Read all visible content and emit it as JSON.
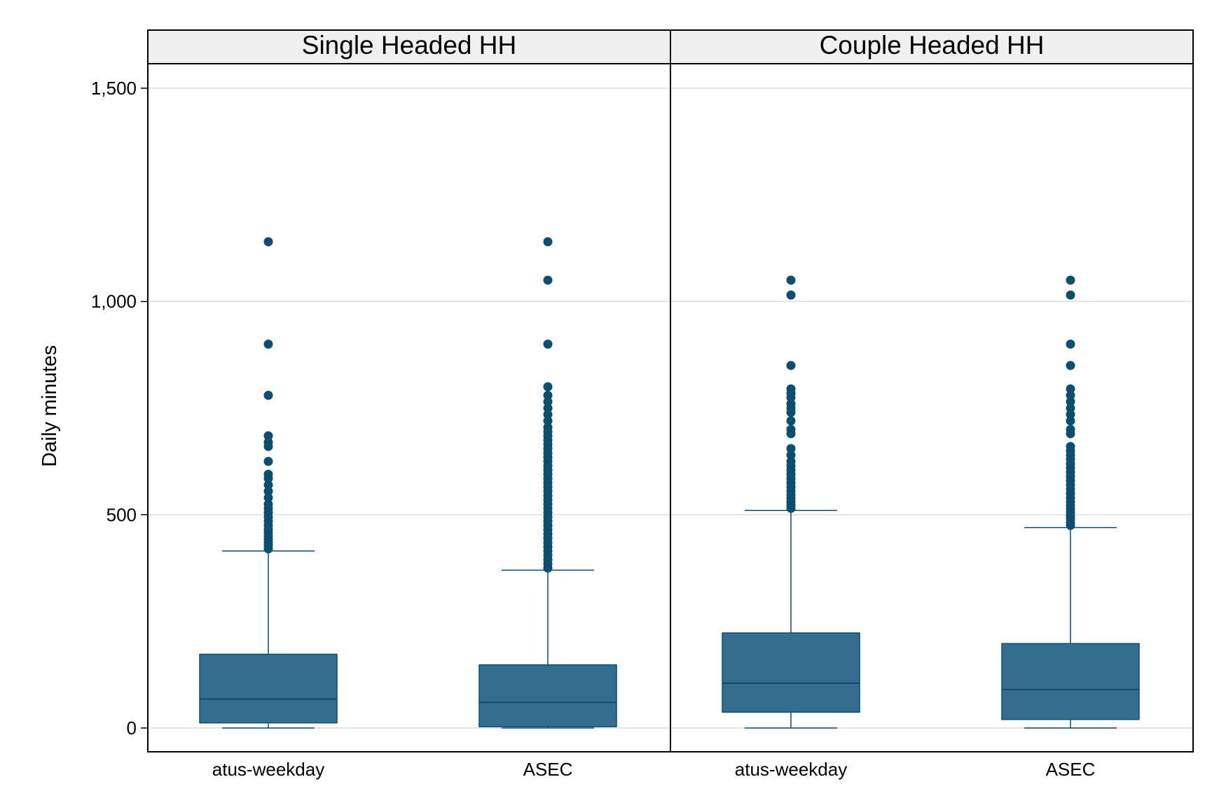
{
  "chart_data": {
    "type": "box",
    "ylabel": "Daily minutes",
    "ylim": [
      -55,
      1500
    ],
    "yticks": [
      0,
      500,
      1000,
      1500
    ],
    "ytick_labels": [
      "0",
      "500",
      "1,000",
      "1,500"
    ],
    "grid": "horizontal",
    "color": "#346e8c",
    "outlier_color": "#0d4d6e",
    "categories": [
      "atus-weekday",
      "ASEC"
    ],
    "panels": [
      {
        "name": "Single Headed HH",
        "boxes": [
          {
            "category": "atus-weekday",
            "whisker_low": 0,
            "q1": 12,
            "median": 68,
            "q3": 173,
            "whisker_high": 415,
            "outliers": [
              420,
              428,
              435,
              442,
              450,
              458,
              466,
              475,
              485,
              495,
              505,
              515,
              525,
              540,
              555,
              570,
              585,
              595,
              625,
              660,
              670,
              685,
              780,
              900,
              1140
            ]
          },
          {
            "category": "ASEC",
            "whisker_low": 0,
            "q1": 3,
            "median": 60,
            "q3": 148,
            "whisker_high": 370,
            "outliers": [
              375,
              385,
              395,
              405,
              415,
              425,
              435,
              445,
              455,
              465,
              475,
              485,
              495,
              505,
              515,
              525,
              535,
              545,
              555,
              565,
              575,
              585,
              595,
              605,
              615,
              625,
              635,
              645,
              655,
              665,
              675,
              685,
              695,
              705,
              720,
              735,
              750,
              765,
              780,
              800,
              900,
              1050,
              1140
            ]
          }
        ]
      },
      {
        "name": "Couple Headed HH",
        "boxes": [
          {
            "category": "atus-weekday",
            "whisker_low": 0,
            "q1": 37,
            "median": 105,
            "q3": 223,
            "whisker_high": 510,
            "outliers": [
              515,
              522,
              530,
              538,
              546,
              555,
              565,
              575,
              585,
              595,
              605,
              615,
              625,
              640,
              655,
              690,
              700,
              720,
              740,
              750,
              760,
              775,
              785,
              795,
              850,
              1015,
              1050
            ]
          },
          {
            "category": "ASEC",
            "whisker_low": 0,
            "q1": 20,
            "median": 90,
            "q3": 198,
            "whisker_high": 470,
            "outliers": [
              475,
              482,
              490,
              498,
              506,
              514,
              522,
              530,
              540,
              550,
              560,
              570,
              580,
              590,
              600,
              610,
              620,
              630,
              640,
              650,
              660,
              690,
              700,
              720,
              735,
              750,
              765,
              780,
              795,
              850,
              900,
              1015,
              1050
            ]
          }
        ]
      }
    ]
  }
}
